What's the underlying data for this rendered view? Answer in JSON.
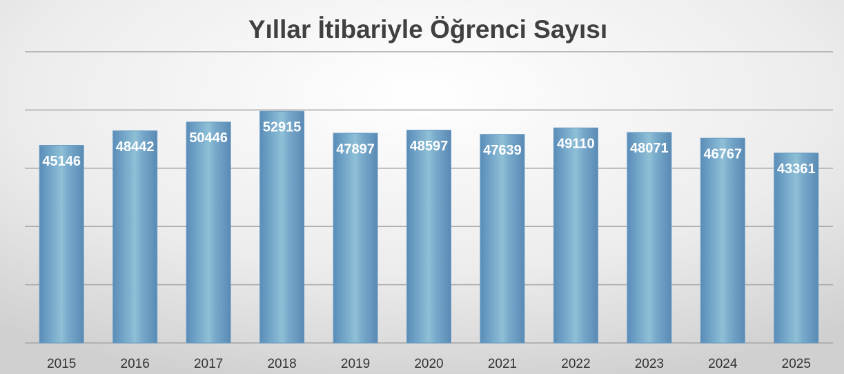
{
  "chart_data": {
    "type": "bar",
    "title": "Yıllar İtibariyle Öğrenci Sayısı",
    "categories": [
      "2015",
      "2016",
      "2017",
      "2018",
      "2019",
      "2020",
      "2021",
      "2022",
      "2023",
      "2024",
      "2025"
    ],
    "values": [
      45146,
      48442,
      50446,
      52915,
      47897,
      48597,
      47639,
      49110,
      48071,
      46767,
      43361
    ],
    "color": "#6a9cc4",
    "ylim": [
      0,
      66500
    ],
    "yticks": [
      0,
      13300,
      26600,
      39900,
      53200,
      66500
    ],
    "grid": true
  }
}
